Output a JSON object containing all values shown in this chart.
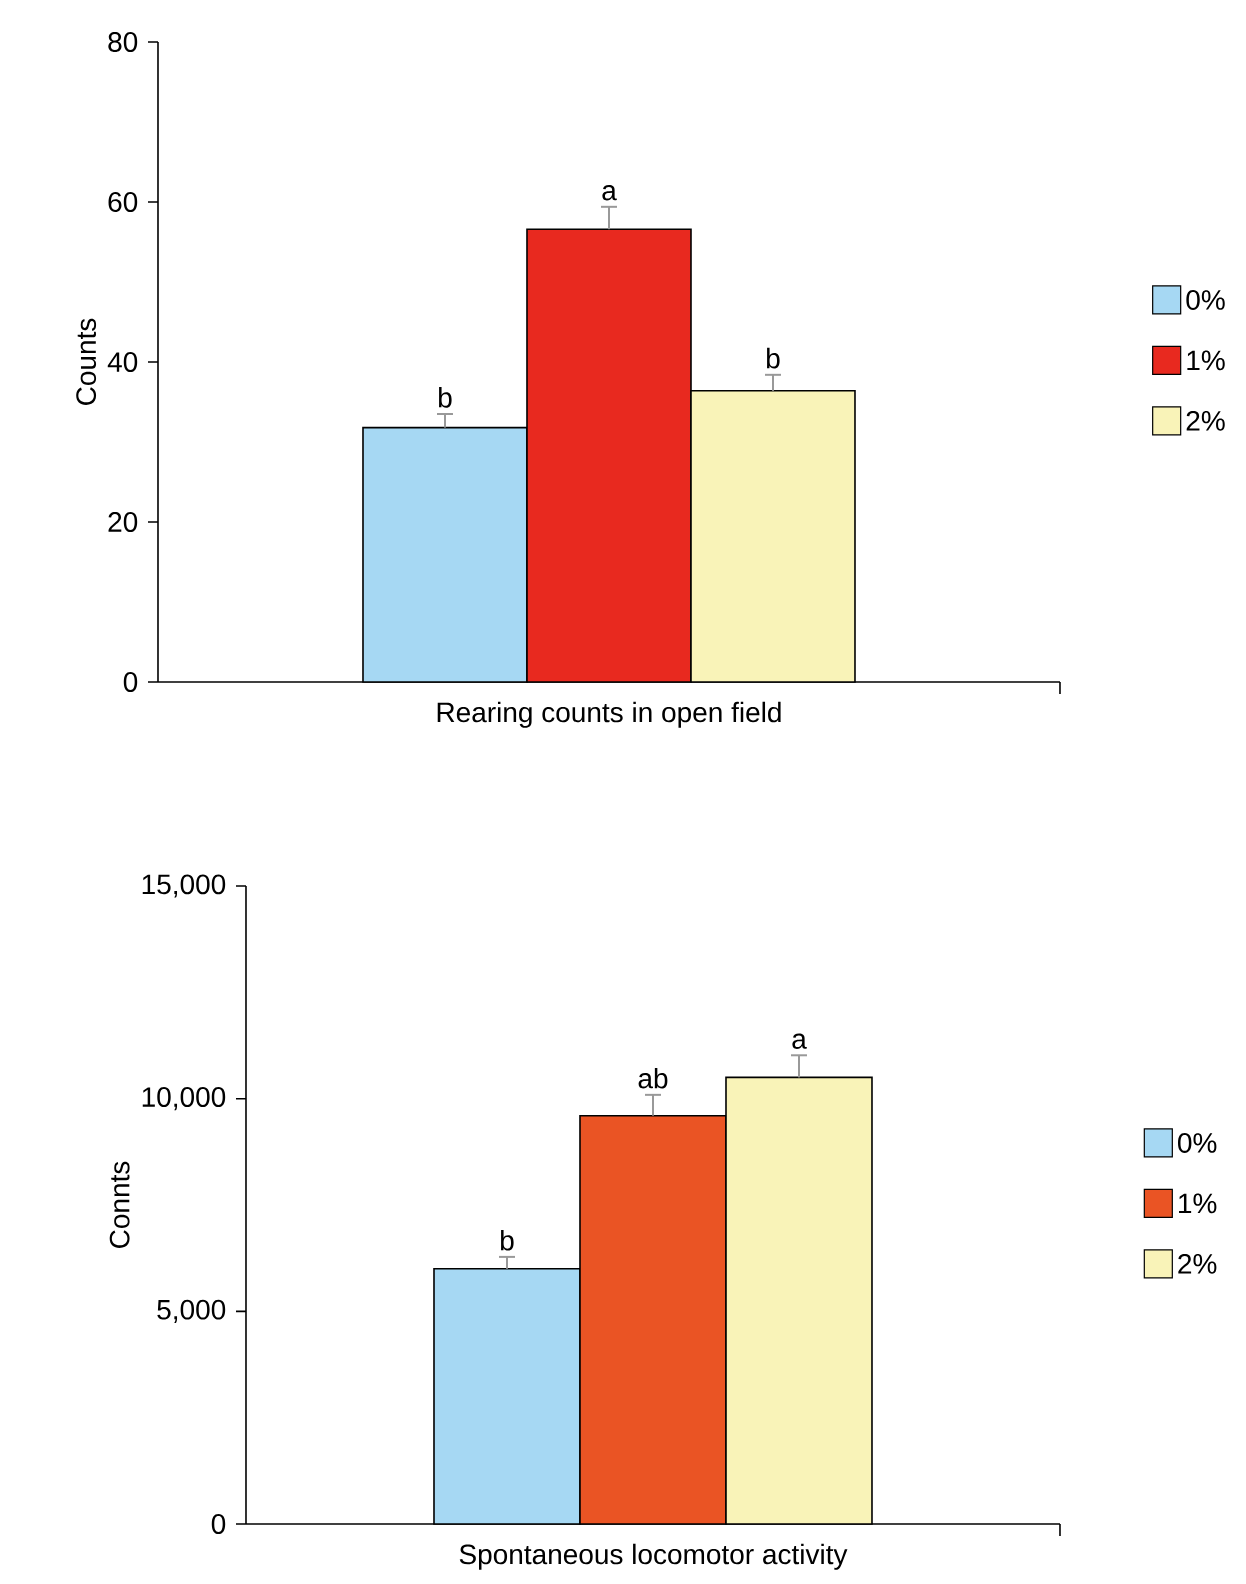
{
  "chart_data": [
    {
      "type": "bar",
      "ylabel": "Counts",
      "categories": [
        "Rearing counts in open field"
      ],
      "series": [
        {
          "name": "0%",
          "color": "#a6d8f3",
          "values": [
            31.8
          ],
          "errors": [
            1.7
          ]
        },
        {
          "name": "1%",
          "color": "#e8291f",
          "values": [
            56.6
          ],
          "errors": [
            2.8
          ]
        },
        {
          "name": "2%",
          "color": "#f9f3b8",
          "values": [
            36.4
          ],
          "errors": [
            2.0
          ]
        }
      ],
      "ylim": [
        0,
        80
      ],
      "yticks": [
        0,
        20,
        40,
        60,
        80
      ],
      "legend": "right",
      "annotations": [
        "b",
        "a",
        "b"
      ]
    },
    {
      "type": "bar",
      "ylabel": "Connts",
      "categories": [
        "Spontaneous locomotor activity"
      ],
      "series": [
        {
          "name": "0%",
          "color": "#a6d8f3",
          "values": [
            6000
          ],
          "errors": [
            280
          ]
        },
        {
          "name": "1%",
          "color": "#ea5424",
          "values": [
            9600
          ],
          "errors": [
            490
          ]
        },
        {
          "name": "2%",
          "color": "#f9f3b8",
          "values": [
            10500
          ],
          "errors": [
            520
          ]
        }
      ],
      "ylim": [
        0,
        15000
      ],
      "yticks": [
        0,
        {
          "value": 5000,
          "label": "5,000"
        },
        {
          "value": 10000,
          "label": "10,000"
        },
        {
          "value": 15000,
          "label": "15,000"
        }
      ],
      "legend": "right",
      "annotations": [
        "b",
        "ab",
        "a"
      ]
    }
  ]
}
